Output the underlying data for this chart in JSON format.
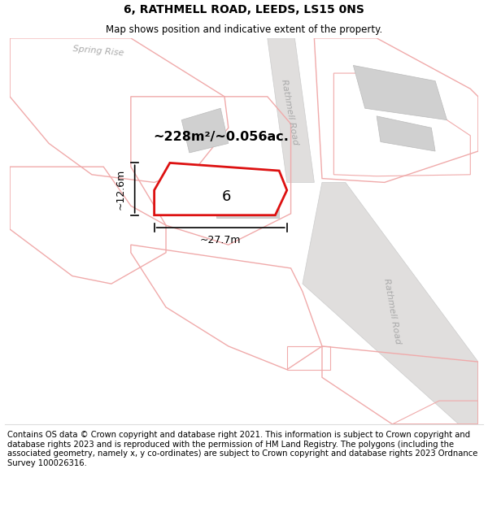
{
  "title": "6, RATHMELL ROAD, LEEDS, LS15 0NS",
  "subtitle": "Map shows position and indicative extent of the property.",
  "footer": "Contains OS data © Crown copyright and database right 2021. This information is subject to Crown copyright and database rights 2023 and is reproduced with the permission of HM Land Registry. The polygons (including the associated geometry, namely x, y co-ordinates) are subject to Crown copyright and database rights 2023 Ordnance Survey 100026316.",
  "plot_outline_color": "#f0aaaa",
  "highlight_color": "#dd1111",
  "building_fill": "#d0d0d0",
  "building_edge": "#bbbbbb",
  "road_fill": "#e0dedd",
  "road_edge": "#cccccc",
  "area_text": "~228m²/~0.056ac.",
  "width_text": "~27.7m",
  "height_text": "~12.6m",
  "property_number": "6",
  "road_label_upper": "Rathmell Road",
  "road_label_lower": "Rathmell Road",
  "street_label": "Spring Rise",
  "title_fontsize": 10,
  "subtitle_fontsize": 8.5,
  "footer_fontsize": 7.2,
  "area_fontsize": 11.5,
  "label_color": "#aaaaaa"
}
